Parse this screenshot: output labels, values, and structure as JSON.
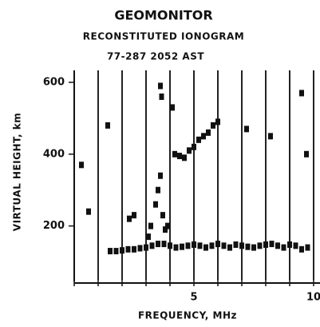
{
  "chart_data": {
    "type": "scatter",
    "title": "GEOMONITOR",
    "subtitle": "RECONSTITUTED IONOGRAM",
    "annotation": "77-287  2052 AST",
    "x_label": "FREQUENCY, MHz",
    "y_label": "VIRTUAL HEIGHT, km",
    "xlim": [
      0,
      10
    ],
    "ylim": [
      50,
      620
    ],
    "xticks": [
      5,
      10
    ],
    "x_marker_lines": [
      0,
      1,
      2,
      3,
      4,
      5,
      6,
      7,
      8,
      9,
      10
    ],
    "yticks": [
      200,
      400,
      600
    ],
    "color": "#111111",
    "series": [
      {
        "color": "#111111",
        "x": [
          1.5,
          1.75,
          2,
          2.25,
          2.5,
          2.75,
          3,
          3.25,
          3.5,
          3.75,
          4,
          4.25,
          4.5,
          4.75,
          5,
          5.25,
          5.5,
          5.75,
          6,
          6.25,
          6.5,
          6.75,
          7,
          7.25,
          7.5,
          7.75,
          8,
          8.25,
          8.5,
          8.75,
          9,
          9.25,
          9.5,
          9.75,
          3.2,
          3.4,
          3.5,
          3.6,
          3.7,
          3.8,
          3.1,
          3.9,
          2.3,
          2.5,
          4.2,
          4.4,
          4.6,
          4.8,
          5.0,
          5.2,
          5.4,
          5.6,
          5.8,
          6.0,
          3.6,
          3.65,
          4.1,
          7.2,
          8.2,
          9.5,
          9.7,
          0.3,
          0.6,
          1.4
        ],
        "values": [
          130,
          130,
          132,
          135,
          135,
          138,
          140,
          145,
          150,
          150,
          145,
          140,
          142,
          145,
          148,
          145,
          140,
          145,
          150,
          145,
          140,
          148,
          145,
          142,
          140,
          145,
          148,
          150,
          145,
          140,
          148,
          145,
          135,
          140,
          200,
          260,
          300,
          340,
          230,
          190,
          170,
          200,
          220,
          230,
          400,
          395,
          390,
          410,
          420,
          440,
          450,
          460,
          480,
          490,
          590,
          560,
          530,
          470,
          450,
          570,
          400,
          370,
          240,
          480
        ]
      }
    ]
  }
}
